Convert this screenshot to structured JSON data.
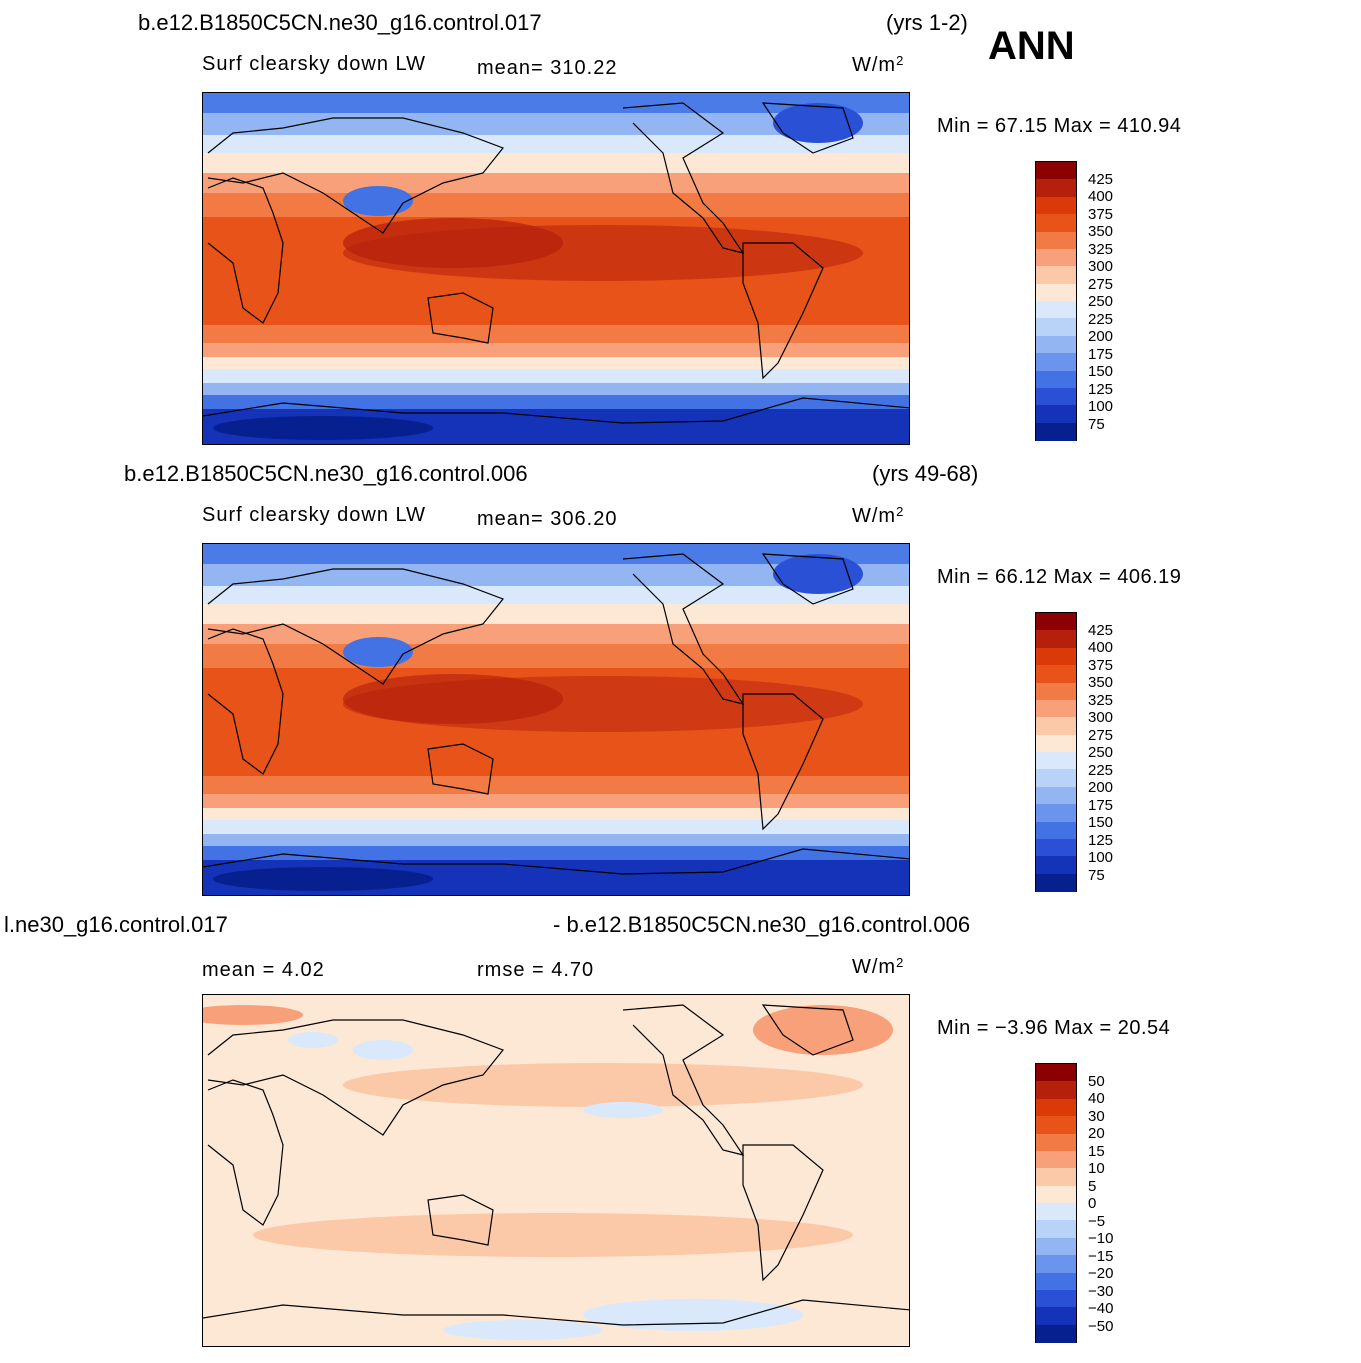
{
  "season": "ANN",
  "panels": [
    {
      "case": "b.e12.B1850C5CN.ne30_g16.control.017",
      "years": "(yrs 1-2)",
      "variable": "Surf clearsky down LW",
      "mean_text": "mean=  310.22",
      "units": "W/m",
      "units_sup": "2",
      "minmax_text": "Min  =    67.15  Max  = 410.94",
      "legend_labels": [
        "425",
        "400",
        "375",
        "350",
        "325",
        "300",
        "275",
        "250",
        "225",
        "200",
        "175",
        "150",
        "125",
        "100",
        "75"
      ]
    },
    {
      "case": "b.e12.B1850C5CN.ne30_g16.control.006",
      "years": "(yrs 49-68)",
      "variable": "Surf clearsky down LW",
      "mean_text": "mean=  306.20",
      "units": "W/m",
      "units_sup": "2",
      "minmax_text": "Min  =    66.12  Max  = 406.19",
      "legend_labels": [
        "425",
        "400",
        "375",
        "350",
        "325",
        "300",
        "275",
        "250",
        "225",
        "200",
        "175",
        "150",
        "125",
        "100",
        "75"
      ]
    },
    {
      "case_left": "l.ne30_g16.control.017",
      "case_right": "- b.e12.B1850C5CN.ne30_g16.control.006",
      "mean_text": "mean  =     4.02",
      "rmse_text": "rmse  =     4.70",
      "units": "W/m",
      "units_sup": "2",
      "minmax_text": "Min  =   −3.96  Max  =    20.54",
      "legend_labels": [
        "50",
        "40",
        "30",
        "20",
        "15",
        "10",
        "5",
        "0",
        "−5",
        "−10",
        "−15",
        "−20",
        "−30",
        "−40",
        "−50"
      ]
    }
  ],
  "colors": {
    "legend_palette": [
      "#8b0000",
      "#b5200c",
      "#d93a08",
      "#e8531a",
      "#f27a45",
      "#f7a07a",
      "#fbc8a8",
      "#fde8d6",
      "#d9e8fb",
      "#b9d2f7",
      "#93b5f2",
      "#6b94ec",
      "#4372e4",
      "#2a50d6",
      "#1433b8",
      "#07208f"
    ]
  }
}
